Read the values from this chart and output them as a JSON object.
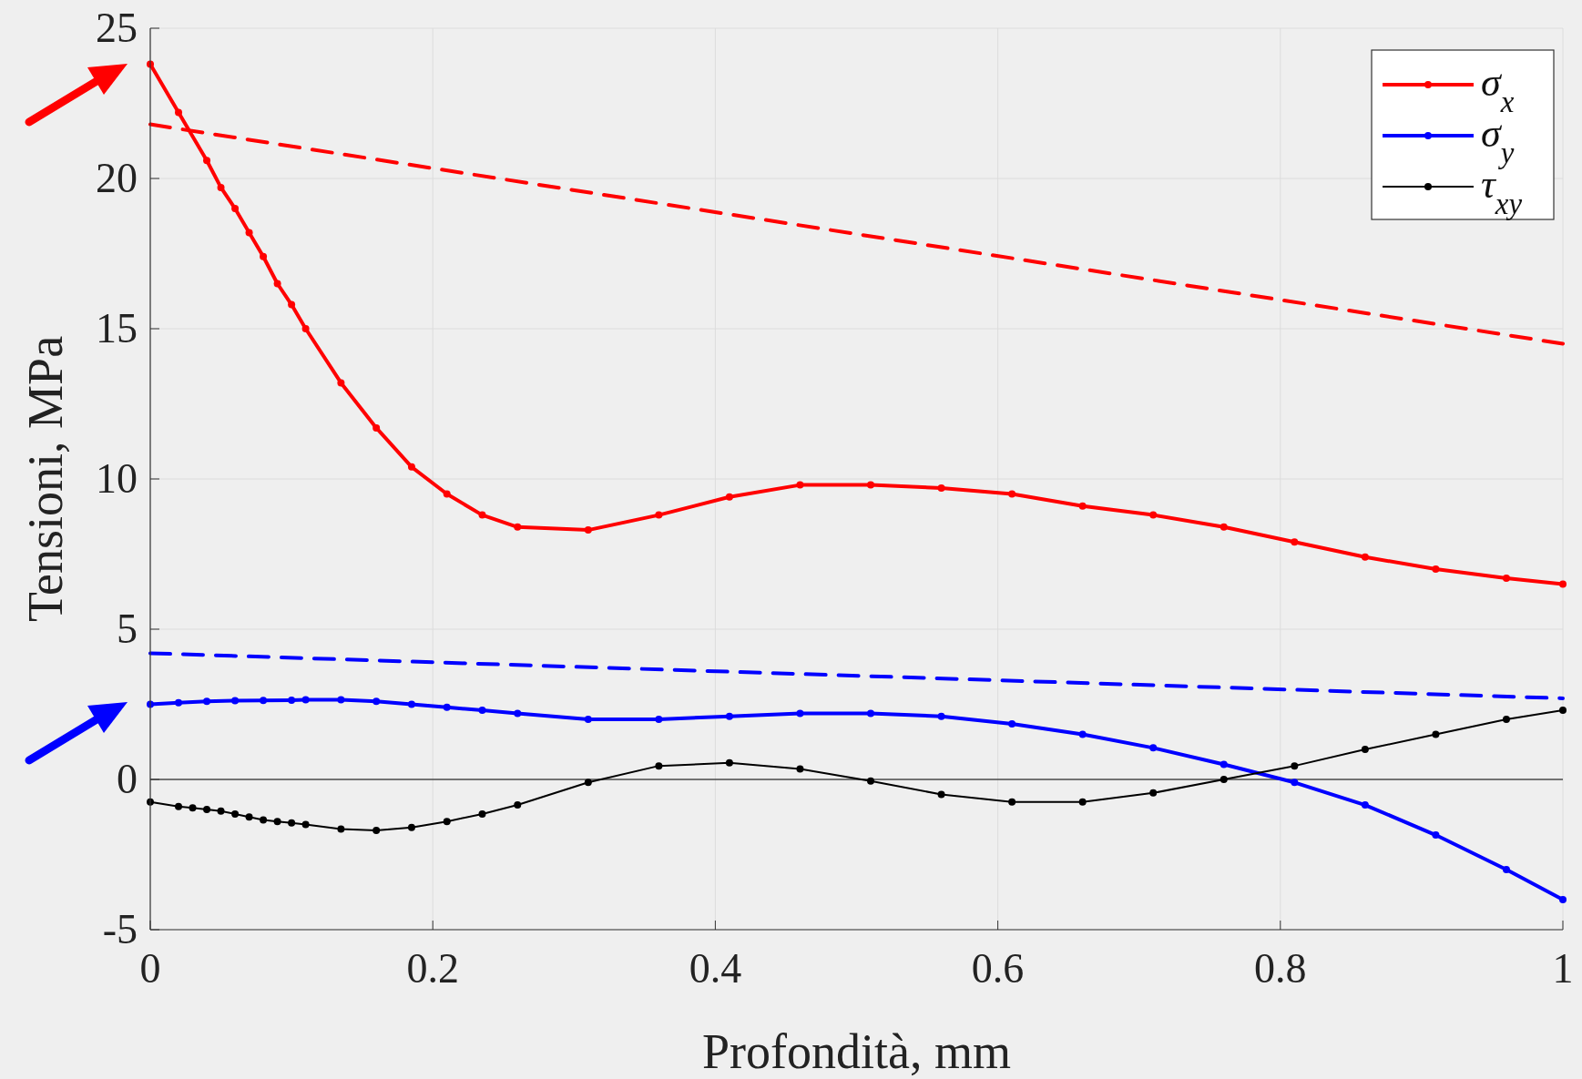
{
  "chart_data": {
    "type": "line",
    "xlabel": "Profondità, mm",
    "ylabel": "Tensioni, MPa",
    "xlim": [
      0,
      1
    ],
    "xticks": [
      0,
      0.2,
      0.4,
      0.6,
      0.8,
      1
    ],
    "ylim": [
      -5,
      25
    ],
    "yticks": [
      -5,
      0,
      5,
      10,
      15,
      20,
      25
    ],
    "grid": true,
    "legend": "top right",
    "marker": "circle",
    "line_style": "solid",
    "ref_lines": [
      {
        "axis": "y",
        "value": 0,
        "color": "#000000"
      }
    ],
    "series": [
      {
        "name": "σ$_{x}$",
        "color": "#ff0000",
        "x": [
          0,
          0.02,
          0.04,
          0.05,
          0.06,
          0.07,
          0.08,
          0.09,
          0.1,
          0.11,
          0.135,
          0.16,
          0.185,
          0.21,
          0.235,
          0.26,
          0.31,
          0.36,
          0.41,
          0.46,
          0.51,
          0.56,
          0.61,
          0.66,
          0.71,
          0.76,
          0.81,
          0.86,
          0.91,
          0.96,
          1
        ],
        "values": [
          23.8,
          22.2,
          20.6,
          19.7,
          19.0,
          18.2,
          17.4,
          16.5,
          15.8,
          15.0,
          13.2,
          11.7,
          10.4,
          9.5,
          8.8,
          8.4,
          8.3,
          8.8,
          9.4,
          9.8,
          9.8,
          9.7,
          9.5,
          9.1,
          8.8,
          8.4,
          7.9,
          7.4,
          7.0,
          6.7,
          6.5
        ]
      },
      {
        "name": "σ$_{y}$",
        "color": "#0000ff",
        "x": [
          0,
          0.02,
          0.04,
          0.06,
          0.08,
          0.1,
          0.11,
          0.135,
          0.16,
          0.185,
          0.21,
          0.235,
          0.26,
          0.31,
          0.36,
          0.41,
          0.46,
          0.51,
          0.56,
          0.61,
          0.66,
          0.71,
          0.76,
          0.81,
          0.86,
          0.91,
          0.96,
          1
        ],
        "values": [
          2.5,
          2.55,
          2.6,
          2.62,
          2.63,
          2.64,
          2.65,
          2.65,
          2.6,
          2.5,
          2.4,
          2.3,
          2.2,
          2.0,
          2.0,
          2.1,
          2.2,
          2.2,
          2.1,
          1.85,
          1.5,
          1.05,
          0.5,
          -0.1,
          -0.85,
          -1.85,
          -3.0,
          -4.0
        ]
      },
      {
        "name": "τ$_{xy}$",
        "color": "#000000",
        "x": [
          0,
          0.02,
          0.03,
          0.04,
          0.05,
          0.06,
          0.07,
          0.08,
          0.09,
          0.1,
          0.11,
          0.135,
          0.16,
          0.185,
          0.21,
          0.235,
          0.26,
          0.31,
          0.36,
          0.41,
          0.46,
          0.51,
          0.56,
          0.61,
          0.66,
          0.71,
          0.76,
          0.81,
          0.86,
          0.91,
          0.96,
          1
        ],
        "values": [
          -0.75,
          -0.9,
          -0.95,
          -1.0,
          -1.05,
          -1.15,
          -1.25,
          -1.35,
          -1.4,
          -1.45,
          -1.5,
          -1.65,
          -1.7,
          -1.6,
          -1.4,
          -1.15,
          -0.85,
          -0.1,
          0.45,
          0.55,
          0.35,
          -0.05,
          -0.5,
          -0.75,
          -0.75,
          -0.45,
          0,
          0.45,
          1.0,
          1.5,
          2.0,
          2.3
        ]
      },
      {
        "color": "#ff0000",
        "x": [
          0,
          1
        ],
        "values": [
          21.8,
          14.5
        ],
        "line_style": "dashed",
        "marker": "none"
      },
      {
        "color": "#0000ff",
        "x": [
          0,
          1
        ],
        "values": [
          4.2,
          2.7
        ],
        "line_style": "dashed",
        "marker": "none"
      }
    ]
  }
}
